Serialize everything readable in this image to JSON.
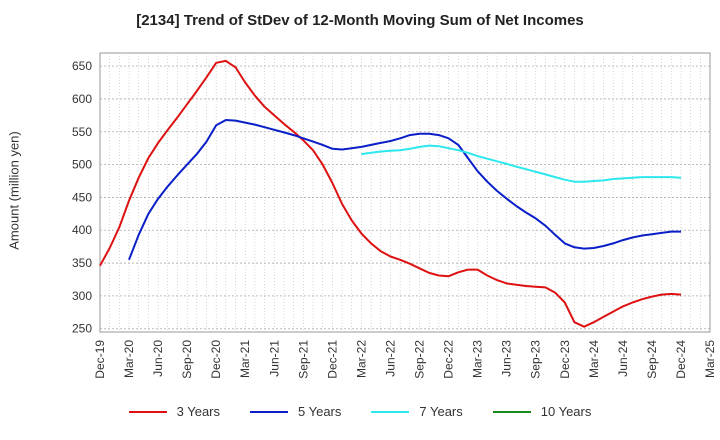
{
  "chart_data": {
    "type": "line",
    "title": "[2134]  Trend of StDev of 12-Month Moving Sum of Net Incomes",
    "xlabel": "",
    "ylabel": "Amount (million yen)",
    "ylim": [
      245,
      670
    ],
    "yticks": [
      250,
      300,
      350,
      400,
      450,
      500,
      550,
      600,
      650
    ],
    "xticks": [
      "Dec-19",
      "Mar-20",
      "Jun-20",
      "Sep-20",
      "Dec-20",
      "Mar-21",
      "Jun-21",
      "Sep-21",
      "Dec-21",
      "Mar-22",
      "Jun-22",
      "Sep-22",
      "Dec-22",
      "Mar-23",
      "Jun-23",
      "Sep-23",
      "Dec-23",
      "Mar-24",
      "Jun-24",
      "Sep-24",
      "Dec-24",
      "Mar-25"
    ],
    "grid": true,
    "legend_position": "bottom",
    "series": [
      {
        "name": "3 Years",
        "color": "#dd1111",
        "x": [
          "Dec-19",
          "Jan-20",
          "Feb-20",
          "Mar-20",
          "Apr-20",
          "May-20",
          "Jun-20",
          "Jul-20",
          "Aug-20",
          "Sep-20",
          "Oct-20",
          "Nov-20",
          "Dec-20",
          "Jan-21",
          "Feb-21",
          "Mar-21",
          "Apr-21",
          "May-21",
          "Jun-21",
          "Jul-21",
          "Aug-21",
          "Sep-21",
          "Oct-21",
          "Nov-21",
          "Dec-21",
          "Jan-22",
          "Feb-22",
          "Mar-22",
          "Apr-22",
          "May-22",
          "Jun-22",
          "Jul-22",
          "Aug-22",
          "Sep-22",
          "Oct-22",
          "Nov-22",
          "Dec-22",
          "Jan-23",
          "Feb-23",
          "Mar-23",
          "Apr-23",
          "May-23",
          "Jun-23",
          "Jul-23",
          "Aug-23",
          "Sep-23",
          "Oct-23",
          "Nov-23",
          "Dec-23",
          "Jan-24",
          "Feb-24",
          "Mar-24",
          "Apr-24",
          "May-24",
          "Jun-24",
          "Jul-24",
          "Aug-24",
          "Sep-24",
          "Oct-24",
          "Nov-24",
          "Dec-24"
        ],
        "values": [
          346,
          373,
          405,
          445,
          480,
          510,
          533,
          553,
          572,
          592,
          612,
          633,
          655,
          658,
          648,
          625,
          605,
          588,
          575,
          562,
          550,
          537,
          522,
          500,
          472,
          440,
          415,
          395,
          380,
          368,
          360,
          355,
          349,
          342,
          335,
          331,
          330,
          336,
          340,
          340,
          331,
          324,
          319,
          317,
          315,
          314,
          313,
          305,
          290,
          260,
          253,
          260,
          268,
          276,
          284,
          290,
          295,
          299,
          302,
          303,
          302
        ]
      },
      {
        "name": "5 Years",
        "color": "#0a1fc8",
        "x": [
          "Mar-20",
          "Apr-20",
          "May-20",
          "Jun-20",
          "Jul-20",
          "Aug-20",
          "Sep-20",
          "Oct-20",
          "Nov-20",
          "Dec-20",
          "Jan-21",
          "Feb-21",
          "Mar-21",
          "Apr-21",
          "May-21",
          "Jun-21",
          "Jul-21",
          "Aug-21",
          "Sep-21",
          "Oct-21",
          "Nov-21",
          "Dec-21",
          "Jan-22",
          "Feb-22",
          "Mar-22",
          "Apr-22",
          "May-22",
          "Jun-22",
          "Jul-22",
          "Aug-22",
          "Sep-22",
          "Oct-22",
          "Nov-22",
          "Dec-22",
          "Jan-23",
          "Feb-23",
          "Mar-23",
          "Apr-23",
          "May-23",
          "Jun-23",
          "Jul-23",
          "Aug-23",
          "Sep-23",
          "Oct-23",
          "Nov-23",
          "Dec-23",
          "Jan-24",
          "Feb-24",
          "Mar-24",
          "Apr-24",
          "May-24",
          "Jun-24",
          "Jul-24",
          "Aug-24",
          "Sep-24",
          "Oct-24",
          "Nov-24",
          "Dec-24"
        ],
        "values": [
          355,
          393,
          425,
          448,
          467,
          484,
          500,
          516,
          535,
          560,
          568,
          567,
          564,
          561,
          557,
          553,
          549,
          545,
          540,
          535,
          530,
          524,
          523,
          525,
          527,
          530,
          533,
          536,
          540,
          545,
          547,
          547,
          545,
          540,
          530,
          510,
          490,
          474,
          460,
          448,
          437,
          427,
          418,
          407,
          393,
          380,
          374,
          372,
          373,
          376,
          380,
          385,
          389,
          392,
          394,
          396,
          398,
          398
        ]
      },
      {
        "name": "7 Years",
        "color": "#2ce8ee",
        "x": [
          "Mar-22",
          "Apr-22",
          "May-22",
          "Jun-22",
          "Jul-22",
          "Aug-22",
          "Sep-22",
          "Oct-22",
          "Nov-22",
          "Dec-22",
          "Jan-23",
          "Feb-23",
          "Mar-23",
          "Apr-23",
          "May-23",
          "Jun-23",
          "Jul-23",
          "Aug-23",
          "Sep-23",
          "Oct-23",
          "Nov-23",
          "Dec-23",
          "Jan-24",
          "Feb-24",
          "Mar-24",
          "Apr-24",
          "May-24",
          "Jun-24",
          "Jul-24",
          "Aug-24",
          "Sep-24",
          "Oct-24",
          "Nov-24",
          "Dec-24"
        ],
        "values": [
          516,
          518,
          520,
          521,
          522,
          524,
          527,
          529,
          528,
          525,
          522,
          518,
          513,
          509,
          505,
          501,
          497,
          493,
          489,
          485,
          481,
          477,
          474,
          474,
          475,
          476,
          478,
          479,
          480,
          481,
          481,
          481,
          481,
          480
        ]
      },
      {
        "name": "10 Years",
        "color": "#1a8a1a",
        "x": [],
        "values": []
      }
    ]
  }
}
